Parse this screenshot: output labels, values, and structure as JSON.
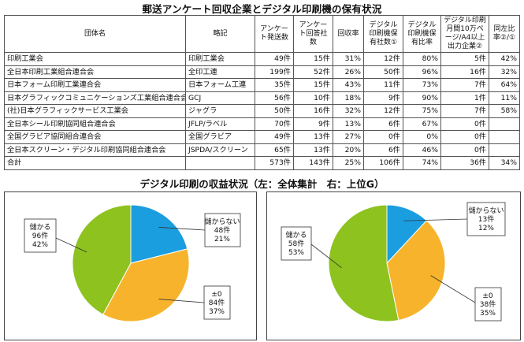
{
  "table_title": "郵送アンケート回収企業とデジタル印刷機の保有状況",
  "table": {
    "headers": [
      "団体名",
      "略記",
      "アンケート発送数",
      "アンケート回答社数",
      "回収率",
      "デジタル印刷機保有社数①",
      "デジタル印刷機保有比率",
      "デジタル印刷月間10万ページ/A4以上出力企業②",
      "同左比率②/①"
    ],
    "rows": [
      [
        "印刷工業会",
        "印刷工業会",
        "49件",
        "15件",
        "31%",
        "12件",
        "80%",
        "5件",
        "42%"
      ],
      [
        "全日本印刷工業組合連合会",
        "全印工連",
        "199件",
        "52件",
        "26%",
        "50件",
        "96%",
        "16件",
        "32%"
      ],
      [
        "日本フォーム印刷工業連合会",
        "日本フォーム工連",
        "35件",
        "15件",
        "43%",
        "11件",
        "73%",
        "7件",
        "64%"
      ],
      [
        "日本グラフィックコミュニケーションズ工業組合連合会",
        "GCJ",
        "56件",
        "10件",
        "18%",
        "9件",
        "90%",
        "1件",
        "11%"
      ],
      [
        "(社)日本グラフィックサービス工業会",
        "ジャグラ",
        "50件",
        "16件",
        "32%",
        "12件",
        "75%",
        "7件",
        "58%"
      ],
      [
        "全日本シール印刷協同組合連合会",
        "JFLP/ラベル",
        "70件",
        "9件",
        "13%",
        "6件",
        "67%",
        "0件",
        ""
      ],
      [
        "全国グラビア協同組合連合会",
        "全国グラビア",
        "49件",
        "13件",
        "27%",
        "0件",
        "0%",
        "0件",
        ""
      ],
      [
        "全日本スクリーン・デジタル印刷協同組合連合会",
        "JSPDA/スクリーン",
        "65件",
        "13件",
        "20%",
        "6件",
        "46%",
        "0件",
        ""
      ]
    ],
    "total": [
      "合計",
      "",
      "573件",
      "143件",
      "25%",
      "106件",
      "74%",
      "36件",
      "34%"
    ]
  },
  "pie_title": "デジタル印刷の収益状況（左：全体集計　右：上位G）",
  "colors": {
    "profit": "#8dc21f",
    "loss": "#1a9ee0",
    "even": "#f7b32b"
  },
  "chart_data": [
    {
      "type": "pie",
      "slices": [
        {
          "name": "儲からない",
          "count_label": "48件",
          "pct_label": "21%",
          "value": 48,
          "color": "#1a9ee0"
        },
        {
          "name": "±0",
          "count_label": "84件",
          "pct_label": "37%",
          "value": 84,
          "color": "#f7b32b"
        },
        {
          "name": "儲かる",
          "count_label": "96件",
          "pct_label": "42%",
          "value": 96,
          "color": "#8dc21f"
        }
      ]
    },
    {
      "type": "pie",
      "slices": [
        {
          "name": "儲からない",
          "count_label": "13件",
          "pct_label": "12%",
          "value": 13,
          "color": "#1a9ee0"
        },
        {
          "name": "±0",
          "count_label": "38件",
          "pct_label": "35%",
          "value": 38,
          "color": "#f7b32b"
        },
        {
          "name": "儲かる",
          "count_label": "58件",
          "pct_label": "53%",
          "value": 58,
          "color": "#8dc21f"
        }
      ]
    }
  ]
}
